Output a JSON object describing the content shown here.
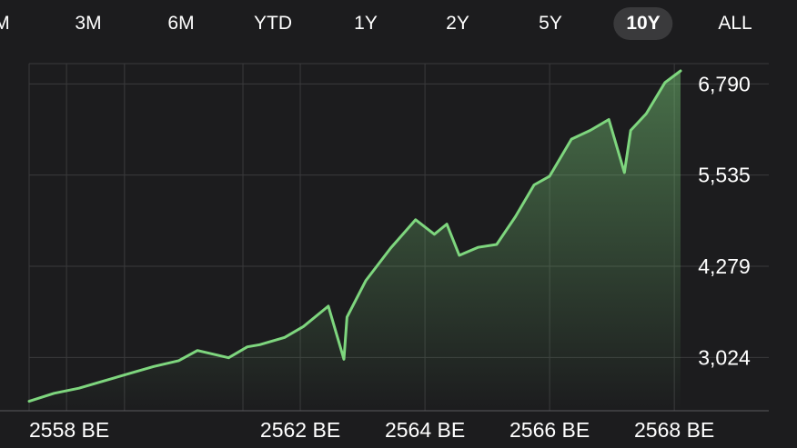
{
  "ranges": {
    "items": [
      "M",
      "3M",
      "6M",
      "YTD",
      "1Y",
      "2Y",
      "5Y",
      "10Y",
      "ALL"
    ],
    "selected": "10Y"
  },
  "colors": {
    "background": "#1c1c1e",
    "line": "#7ed67e",
    "grid": "#3a3a3c",
    "text": "#ffffff",
    "selected_pill": "#3a3a3c"
  },
  "chart_data": {
    "type": "area",
    "title": "",
    "xlabel": "",
    "ylabel": "",
    "x_ticks": [
      "2558 BE",
      "2562 BE",
      "2564 BE",
      "2566 BE",
      "2568 BE"
    ],
    "x_tick_positions": [
      2558.0,
      2561.75,
      2563.75,
      2565.75,
      2567.75
    ],
    "y_ticks": [
      3024,
      4279,
      5535,
      6790
    ],
    "y_axis_side": "right",
    "xlim": [
      2557.4,
      2567.85
    ],
    "ylim": [
      2290,
      7070
    ],
    "grid": true,
    "series": [
      {
        "x": [
          2557.4,
          2557.8,
          2558.2,
          2558.6,
          2559.0,
          2559.4,
          2559.8,
          2560.1,
          2560.6,
          2560.9,
          2561.1,
          2561.5,
          2561.8,
          2562.2,
          2562.45,
          2562.5,
          2562.8,
          2563.2,
          2563.6,
          2563.9,
          2564.1,
          2564.3,
          2564.6,
          2564.9,
          2565.2,
          2565.5,
          2565.75,
          2566.1,
          2566.4,
          2566.7,
          2566.95,
          2567.05,
          2567.3,
          2567.6,
          2567.85
        ],
        "values": [
          2420,
          2530,
          2600,
          2700,
          2800,
          2900,
          2980,
          3120,
          3020,
          3170,
          3200,
          3300,
          3450,
          3730,
          3000,
          3580,
          4080,
          4530,
          4920,
          4720,
          4860,
          4430,
          4540,
          4580,
          4960,
          5400,
          5520,
          6030,
          6150,
          6300,
          5570,
          6150,
          6380,
          6810,
          6970
        ]
      }
    ]
  }
}
